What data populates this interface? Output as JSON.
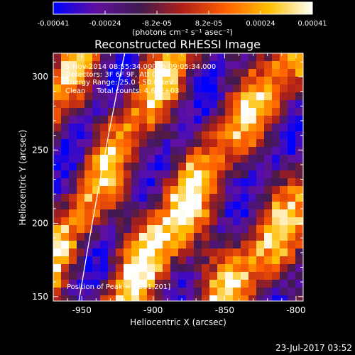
{
  "chart_data": {
    "type": "heatmap",
    "title": "Reconstructed RHESSI Image",
    "xlabel": "Heliocentric X (arcsec)",
    "ylabel": "Heliocentric Y (arcsec)",
    "xlim": [
      -970,
      -795
    ],
    "ylim": [
      147,
      316
    ],
    "xticks": [
      -950,
      -900,
      -850,
      -800
    ],
    "yticks": [
      150,
      200,
      250,
      300
    ],
    "colorbar": {
      "ticks": [
        "-0.00041",
        "-0.00024",
        "-8.2e-05",
        "8.2e-05",
        "0.00024",
        "0.00041"
      ],
      "range": [
        -0.00041,
        0.00041
      ],
      "unit_label": "(photons cm⁻² s⁻¹ asec⁻²)",
      "colors": [
        "#0000ff",
        "#6010a0",
        "#401a50",
        "#b02018",
        "#ff6000",
        "#ffc000",
        "#ffffff"
      ]
    },
    "annotations": [
      "5-Nov-2014 08:55:34.000 to 09:05:34.000",
      "Detectors: 3F 6F 9F, Att 0",
      "Energy Range: 25.0 - 50.0 keV",
      "Clean     Total counts: 4.67E+03"
    ],
    "peak_label": "Position of Peak = [-891,201]",
    "limb": {
      "points": [
        [
          -952,
          147
        ],
        [
          -938,
          230
        ],
        [
          -920,
          316
        ]
      ]
    }
  },
  "footer": {
    "timestamp": "23-Jul-2017 03:52"
  }
}
